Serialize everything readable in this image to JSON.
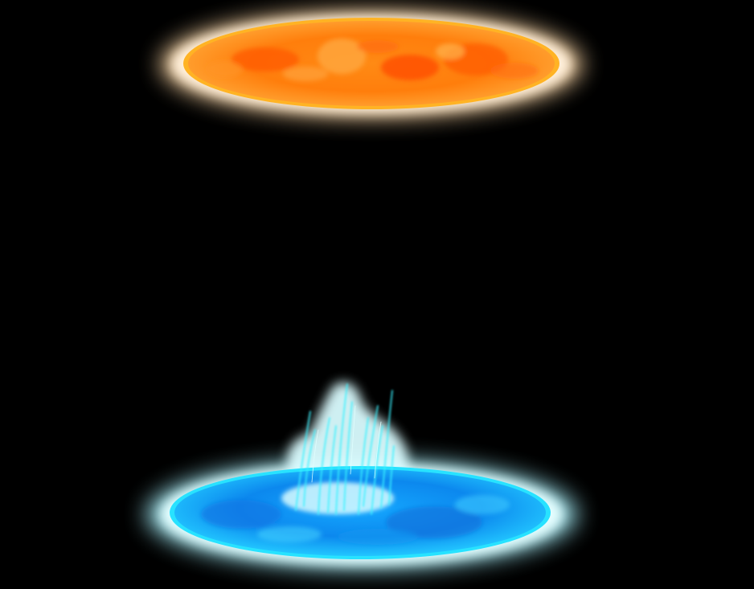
{
  "scene": {
    "background": "#000000",
    "portals": [
      {
        "name": "orange-portal",
        "colors": {
          "glow": "#ffe6c4",
          "rim": "#ffb020",
          "core_light": "#ffa030",
          "core_dark": "#ff6a00",
          "swirl": "#ff4f00"
        }
      },
      {
        "name": "blue-portal",
        "colors": {
          "glow": "#cffcff",
          "rim": "#00e8ff",
          "core_light": "#29b8ff",
          "core_dark": "#0a7de8",
          "stream": "#5cf6ff"
        }
      }
    ]
  }
}
